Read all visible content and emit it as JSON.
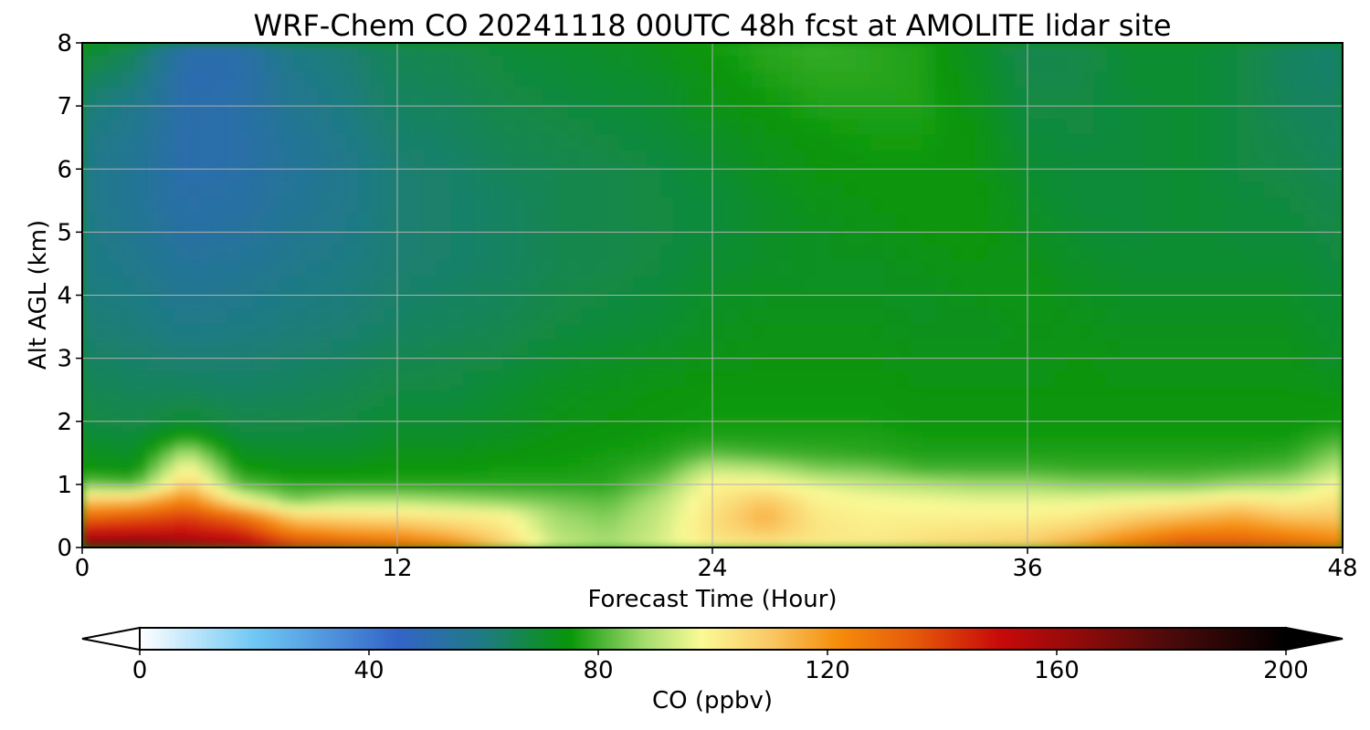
{
  "chart_data": {
    "type": "heatmap",
    "subtype": "filled-contour",
    "title": "WRF-Chem CO  20241118 00UTC 48h fcst at AMOLITE lidar site",
    "xlabel": "Forecast Time (Hour)",
    "ylabel": "Alt AGL (km)",
    "xlim": [
      0,
      48
    ],
    "ylim": [
      0,
      8
    ],
    "x_ticks": [
      0,
      12,
      24,
      36,
      48
    ],
    "y_ticks": [
      0,
      1,
      2,
      3,
      4,
      5,
      6,
      7,
      8
    ],
    "grid": true,
    "colorbar": {
      "label": "CO  (ppbv)",
      "range": [
        0,
        200
      ],
      "ticks": [
        0,
        40,
        80,
        120,
        160,
        200
      ],
      "extend": "both",
      "orientation": "horizontal",
      "stops": [
        {
          "value": 0,
          "color": "#ffffff"
        },
        {
          "value": 20,
          "color": "#6fc8f4"
        },
        {
          "value": 45,
          "color": "#3364c8"
        },
        {
          "value": 60,
          "color": "#1e7b82"
        },
        {
          "value": 75,
          "color": "#079608"
        },
        {
          "value": 88,
          "color": "#a4dc6e"
        },
        {
          "value": 98,
          "color": "#fafa96"
        },
        {
          "value": 110,
          "color": "#fac864"
        },
        {
          "value": 122,
          "color": "#f58c0a"
        },
        {
          "value": 135,
          "color": "#e65a0a"
        },
        {
          "value": 150,
          "color": "#c80a0a"
        },
        {
          "value": 165,
          "color": "#8c0a0a"
        },
        {
          "value": 180,
          "color": "#4b0a0a"
        },
        {
          "value": 200,
          "color": "#000000"
        }
      ]
    },
    "times": [
      0,
      2,
      4,
      6,
      8,
      10,
      12,
      14,
      16,
      18,
      20,
      22,
      24,
      26,
      28,
      30,
      32,
      34,
      36,
      38,
      40,
      42,
      44,
      46,
      48
    ],
    "altitudes": [
      0,
      0.1,
      0.25,
      0.5,
      0.75,
      1.0,
      1.25,
      1.5,
      1.75,
      2.0,
      2.5,
      3.0,
      3.5,
      4.0,
      4.5,
      5.0,
      5.5,
      6.0,
      6.5,
      7.0,
      7.5,
      8.0
    ],
    "profiles_ppbv": [
      [
        185,
        160,
        150,
        130,
        110,
        85,
        75,
        72,
        70,
        68,
        66,
        64,
        62,
        61,
        60,
        60,
        59,
        59,
        60,
        62,
        66,
        72
      ],
      [
        180,
        165,
        150,
        135,
        112,
        82,
        74,
        71,
        69,
        67,
        65,
        63,
        61,
        60,
        58,
        57,
        56,
        56,
        57,
        58,
        62,
        66
      ],
      [
        170,
        160,
        150,
        140,
        125,
        110,
        100,
        90,
        78,
        70,
        65,
        62,
        59,
        57,
        55,
        53,
        52,
        51,
        51,
        51,
        50,
        52
      ],
      [
        160,
        155,
        145,
        130,
        100,
        82,
        76,
        72,
        69,
        67,
        64,
        62,
        60,
        58,
        56,
        54,
        53,
        52,
        52,
        52,
        51,
        52
      ],
      [
        145,
        138,
        125,
        108,
        85,
        78,
        74,
        71,
        69,
        67,
        65,
        63,
        61,
        60,
        58,
        57,
        56,
        55,
        56,
        57,
        58,
        60
      ],
      [
        140,
        132,
        120,
        105,
        90,
        78,
        74,
        71,
        69,
        68,
        66,
        64,
        62,
        61,
        60,
        59,
        58,
        58,
        59,
        60,
        61,
        62
      ],
      [
        135,
        128,
        118,
        104,
        90,
        78,
        75,
        73,
        71,
        70,
        68,
        66,
        64,
        63,
        62,
        62,
        62,
        62,
        63,
        64,
        65,
        66
      ],
      [
        128,
        122,
        112,
        102,
        88,
        78,
        75,
        73,
        71,
        70,
        68,
        67,
        65,
        64,
        63,
        63,
        63,
        63,
        64,
        65,
        66,
        67
      ],
      [
        110,
        108,
        104,
        100,
        86,
        78,
        76,
        74,
        72,
        71,
        70,
        68,
        66,
        65,
        64,
        64,
        64,
        65,
        66,
        67,
        68,
        69
      ],
      [
        92,
        92,
        90,
        88,
        84,
        78,
        76,
        75,
        74,
        73,
        72,
        70,
        68,
        67,
        66,
        66,
        66,
        66,
        67,
        68,
        69,
        70
      ],
      [
        88,
        88,
        87,
        85,
        82,
        78,
        77,
        76,
        75,
        74,
        73,
        71,
        69,
        68,
        67,
        67,
        67,
        67,
        68,
        69,
        70,
        71
      ],
      [
        94,
        94,
        93,
        92,
        90,
        85,
        80,
        77,
        76,
        75,
        74,
        72,
        70,
        69,
        68,
        68,
        68,
        68,
        69,
        70,
        71,
        73
      ],
      [
        100,
        102,
        104,
        104,
        102,
        100,
        92,
        82,
        77,
        76,
        75,
        73,
        72,
        71,
        70,
        69,
        69,
        70,
        71,
        73,
        74,
        76
      ],
      [
        100,
        104,
        110,
        115,
        110,
        100,
        90,
        80,
        77,
        76,
        75,
        74,
        73,
        72,
        71,
        71,
        71,
        72,
        73,
        75,
        77,
        78
      ],
      [
        100,
        102,
        103,
        102,
        100,
        95,
        85,
        79,
        77,
        76,
        75,
        74,
        73,
        72,
        72,
        72,
        73,
        74,
        75,
        77,
        78,
        79
      ],
      [
        102,
        102,
        101,
        100,
        98,
        92,
        84,
        78,
        77,
        76,
        75,
        74,
        73,
        72,
        72,
        73,
        74,
        75,
        76,
        77,
        78,
        78
      ],
      [
        105,
        104,
        103,
        100,
        97,
        90,
        80,
        77,
        76,
        75,
        74,
        73,
        72,
        72,
        73,
        74,
        75,
        75,
        76,
        77,
        77,
        77
      ],
      [
        108,
        106,
        104,
        100,
        96,
        88,
        80,
        77,
        76,
        75,
        74,
        73,
        72,
        73,
        74,
        75,
        75,
        74,
        74,
        73,
        72,
        71
      ],
      [
        110,
        108,
        105,
        100,
        96,
        88,
        80,
        77,
        76,
        75,
        74,
        73,
        73,
        74,
        73,
        72,
        71,
        70,
        69,
        68,
        67,
        66
      ],
      [
        120,
        116,
        110,
        102,
        96,
        86,
        79,
        77,
        76,
        75,
        74,
        74,
        73,
        72,
        71,
        70,
        69,
        69,
        68,
        68,
        67,
        67
      ],
      [
        130,
        126,
        118,
        108,
        98,
        86,
        79,
        77,
        76,
        75,
        74,
        73,
        72,
        71,
        70,
        69,
        69,
        69,
        69,
        69,
        70,
        70
      ],
      [
        140,
        134,
        125,
        112,
        100,
        85,
        79,
        77,
        76,
        75,
        74,
        73,
        72,
        71,
        70,
        70,
        70,
        70,
        70,
        70,
        70,
        70
      ],
      [
        140,
        134,
        126,
        116,
        104,
        88,
        80,
        77,
        76,
        75,
        74,
        73,
        72,
        71,
        70,
        69,
        69,
        68,
        68,
        68,
        68,
        68
      ],
      [
        138,
        130,
        122,
        110,
        100,
        90,
        82,
        78,
        76,
        75,
        74,
        73,
        72,
        71,
        70,
        69,
        68,
        67,
        66,
        65,
        64,
        64
      ],
      [
        130,
        124,
        118,
        110,
        104,
        100,
        92,
        86,
        80,
        76,
        73,
        71,
        70,
        69,
        68,
        67,
        66,
        65,
        64,
        64,
        63,
        63
      ]
    ]
  }
}
